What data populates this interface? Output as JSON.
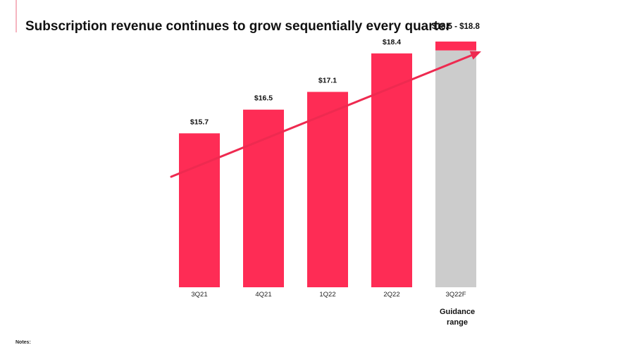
{
  "title": "Subscription revenue continues to grow sequentially every quarter",
  "footnote": "Notes:",
  "colors": {
    "bar": "#fe2c55",
    "guidance_base": "#cccccc",
    "arrow": "#ee2a50",
    "text": "#111111"
  },
  "chart_data": {
    "type": "bar",
    "title": "Subscription revenue continues to grow sequentially every quarter",
    "xlabel": "",
    "ylabel": "",
    "grid": false,
    "categories": [
      "3Q21",
      "4Q21",
      "1Q22",
      "2Q22",
      "3Q22F"
    ],
    "values": [
      15.7,
      16.5,
      17.1,
      18.4,
      18.8
    ],
    "data_labels": [
      "$15.7",
      "$16.5",
      "$17.1",
      "$18.4",
      "$18.5 - $18.8"
    ],
    "guidance": {
      "category": "3Q22F",
      "low": 18.5,
      "high": 18.8,
      "label": "$18.5 - $18.8",
      "caption_lines": [
        "Guidance",
        "range"
      ]
    },
    "ylim": [
      10.5,
      19.3
    ],
    "trend_arrow": true
  }
}
